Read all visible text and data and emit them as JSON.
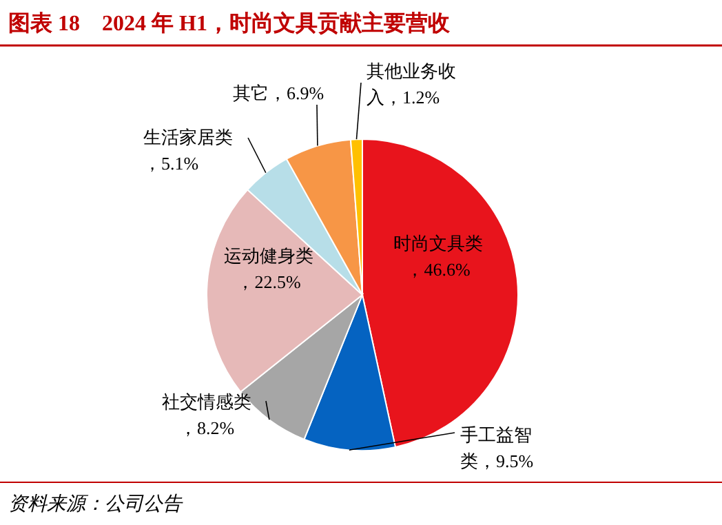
{
  "chart_data": {
    "type": "pie",
    "title": "图表 18　2024 年 H1，时尚文具贡献主要营收",
    "categories": [
      "时尚文具类",
      "手工益智类",
      "社交情感类",
      "运动健身类",
      "生活家居类",
      "其它",
      "其他业务收入"
    ],
    "value_labels": [
      "，46.6%",
      "，9.5%",
      "，8.2%",
      "，22.5%",
      "，5.1%",
      "，6.9%",
      "，1.2%"
    ],
    "values": [
      46.6,
      9.5,
      8.2,
      22.5,
      5.1,
      6.9,
      1.2
    ],
    "colors": [
      "#e8141c",
      "#0563c1",
      "#a6a6a6",
      "#e6b9b8",
      "#b7dee8",
      "#f79646",
      "#ffc000"
    ],
    "annotations": [
      "资料来源：公司公告"
    ]
  }
}
